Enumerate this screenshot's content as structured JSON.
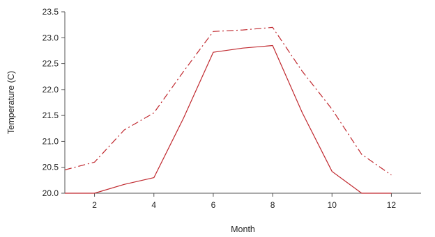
{
  "chart_data": {
    "type": "line",
    "title": "",
    "xlabel": "Month",
    "ylabel": "Temperature (C)",
    "xlim": [
      1,
      13
    ],
    "ylim": [
      20.0,
      23.5
    ],
    "x_ticks": [
      2,
      4,
      6,
      8,
      10,
      12
    ],
    "x_tick_labels": [
      "2",
      "4",
      "6",
      "8",
      "10",
      "12"
    ],
    "y_ticks": [
      20.0,
      20.5,
      21.0,
      21.5,
      22.0,
      22.5,
      23.0,
      23.5
    ],
    "y_tick_labels": [
      "20.0",
      "20.5",
      "21.0",
      "21.5",
      "22.0",
      "22.5",
      "23.0",
      "23.5"
    ],
    "grid": false,
    "legend": "none",
    "x": [
      1,
      2,
      3,
      4,
      5,
      6,
      7,
      8,
      9,
      10,
      11,
      12
    ],
    "series": [
      {
        "style": "solid",
        "color": "#c0282e",
        "values": [
          20.0,
          20.0,
          20.17,
          20.3,
          21.45,
          22.72,
          22.8,
          22.85,
          21.55,
          20.42,
          20.0,
          20.0
        ]
      },
      {
        "style": "dash-dot",
        "color": "#c0282e",
        "values": [
          20.45,
          20.6,
          21.22,
          21.55,
          22.35,
          23.12,
          23.15,
          23.2,
          22.35,
          21.62,
          20.75,
          20.35
        ]
      }
    ]
  }
}
